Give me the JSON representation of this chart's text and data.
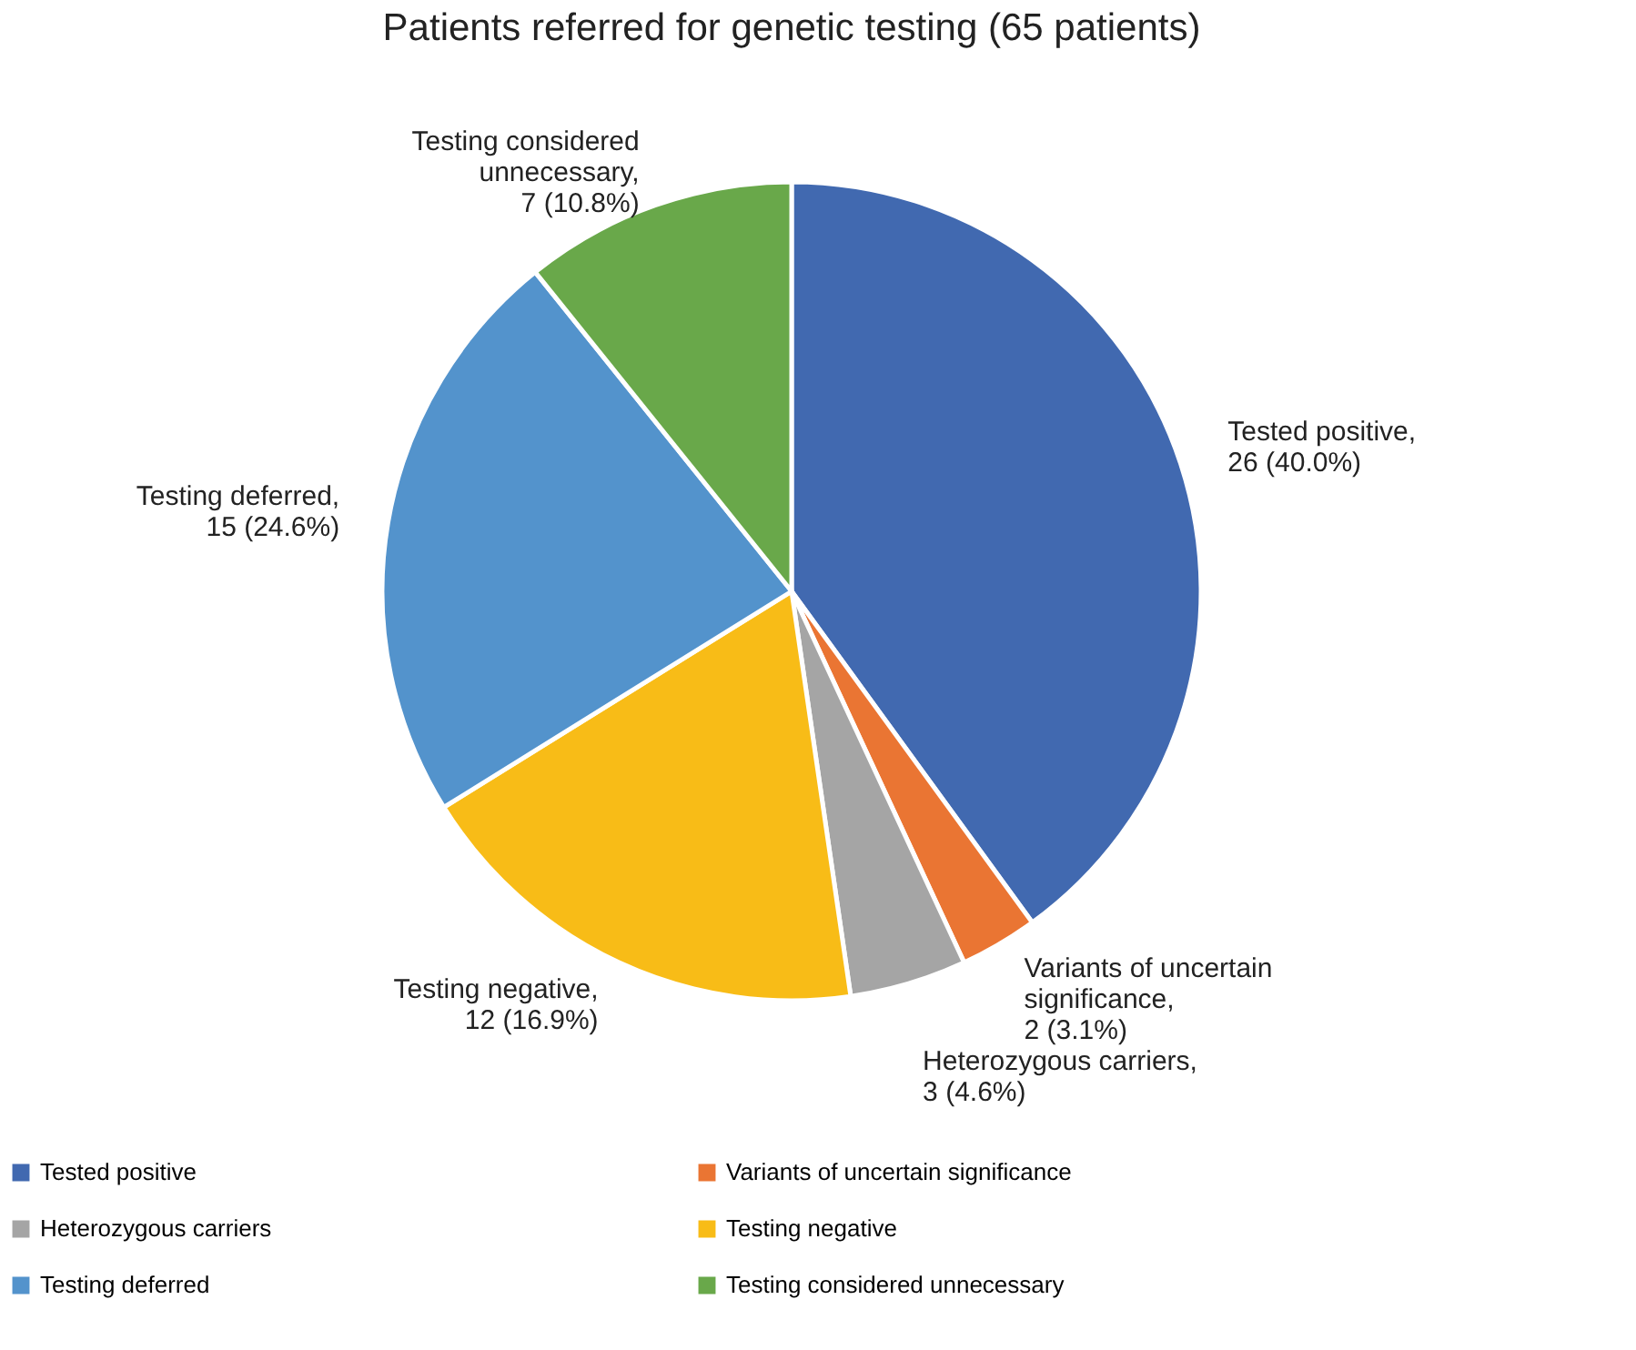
{
  "chart_data": {
    "type": "pie",
    "title": "Patients referred for genetic testing (65 patients)",
    "categories": [
      "Tested positive",
      "Variants of uncertain significance",
      "Heterozygous carriers",
      "Testing negative",
      "Testing deferred",
      "Testing considered unnecessary"
    ],
    "values": [
      26,
      2,
      3,
      12,
      15,
      7
    ],
    "value_labels": [
      "Tested positive, 26 (40.0%)",
      "Variants of uncertain significance, 2 (3.1%)",
      "Heterozygous carriers, 3 (4.6%)",
      "Testing negative, 12 (16.9%)",
      "Testing deferred, 15 (24.6%)",
      "Testing considered unnecessary, 7 (10.8%)"
    ],
    "colors": [
      "#4169b0",
      "#ea7533",
      "#a5a5a5",
      "#f8bc17",
      "#5393cc",
      "#69a84a"
    ],
    "legend": "bottom"
  }
}
